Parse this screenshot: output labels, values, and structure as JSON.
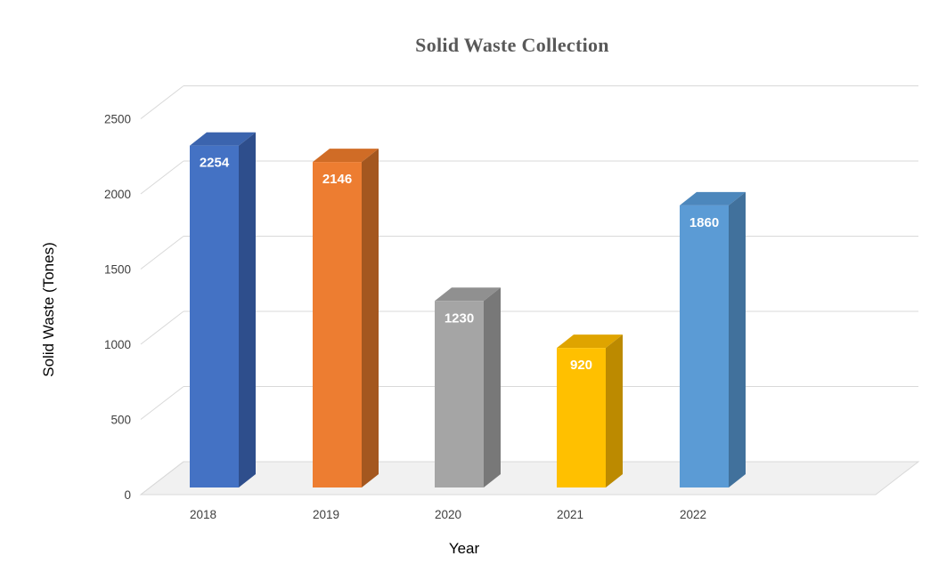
{
  "page": {
    "background": "#FFFFFF"
  },
  "chart_data": {
    "type": "bar",
    "subtype": "3d-clustered-column",
    "title": "Solid Waste Collection",
    "xlabel": "Year",
    "ylabel": "Solid Waste (Tones)",
    "categories": [
      "2018",
      "2019",
      "2020",
      "2021",
      "2022"
    ],
    "values": [
      2254,
      2146,
      1230,
      920,
      1860
    ],
    "data_labels": [
      "2254",
      "2146",
      "1230",
      "920",
      "1860"
    ],
    "yticks": [
      0,
      500,
      1000,
      1500,
      2000,
      2500
    ],
    "ytick_labels": [
      "0",
      "500",
      "1000",
      "1500",
      "2000",
      "2500"
    ],
    "ylim": [
      0,
      2500
    ],
    "grid": true,
    "legend": "none",
    "bar_colors": [
      {
        "name": "2018",
        "front": "#4472C4",
        "top": "#3B64AE",
        "side": "#2E4E8C"
      },
      {
        "name": "2019",
        "front": "#ED7D31",
        "top": "#D06C26",
        "side": "#A4571F"
      },
      {
        "name": "2020",
        "front": "#A5A5A5",
        "top": "#909090",
        "side": "#787878"
      },
      {
        "name": "2021",
        "front": "#FFC000",
        "top": "#DFA400",
        "side": "#BC8A00"
      },
      {
        "name": "2022",
        "front": "#5B9BD5",
        "top": "#4C87BC",
        "side": "#41719C"
      }
    ],
    "style": {
      "title_color": "#595959",
      "axis_title_color": "#000000",
      "tick_color": "#3F3F3F",
      "grid_color": "#D9D9D9",
      "floor_fill": "#F1F1F1",
      "floor_edge": "#D9D9D9",
      "value_label_color": "#FFFFFF"
    }
  }
}
